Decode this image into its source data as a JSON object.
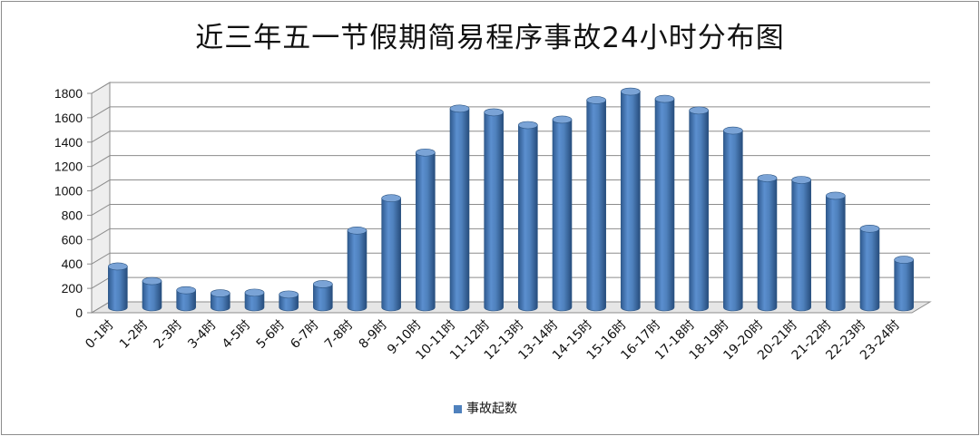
{
  "chart_data": {
    "type": "bar",
    "title": "近三年五一节假期简易程序事故24小时分布图",
    "categories": [
      "0-1时",
      "1-2时",
      "2-3时",
      "3-4时",
      "4-5时",
      "5-6时",
      "6-7时",
      "7-8时",
      "8-9时",
      "9-10时",
      "10-11时",
      "11-12时",
      "12-13时",
      "13-14时",
      "14-15时",
      "15-16时",
      "16-17时",
      "17-18时",
      "18-19时",
      "19-20时",
      "20-21时",
      "21-22时",
      "22-23时",
      "23-24时"
    ],
    "series": [
      {
        "name": "事故起数",
        "color": "#4f81bd",
        "values": [
          335,
          215,
          140,
          115,
          120,
          105,
          190,
          630,
          895,
          1270,
          1630,
          1600,
          1495,
          1540,
          1700,
          1770,
          1710,
          1615,
          1450,
          1060,
          1045,
          915,
          645,
          390
        ]
      }
    ],
    "yticks": [
      0,
      200,
      400,
      600,
      800,
      1000,
      1200,
      1400,
      1600,
      1800
    ],
    "ylim": [
      0,
      1800
    ],
    "xlabel": "",
    "ylabel": "",
    "grid": true,
    "legend_position": "bottom"
  }
}
